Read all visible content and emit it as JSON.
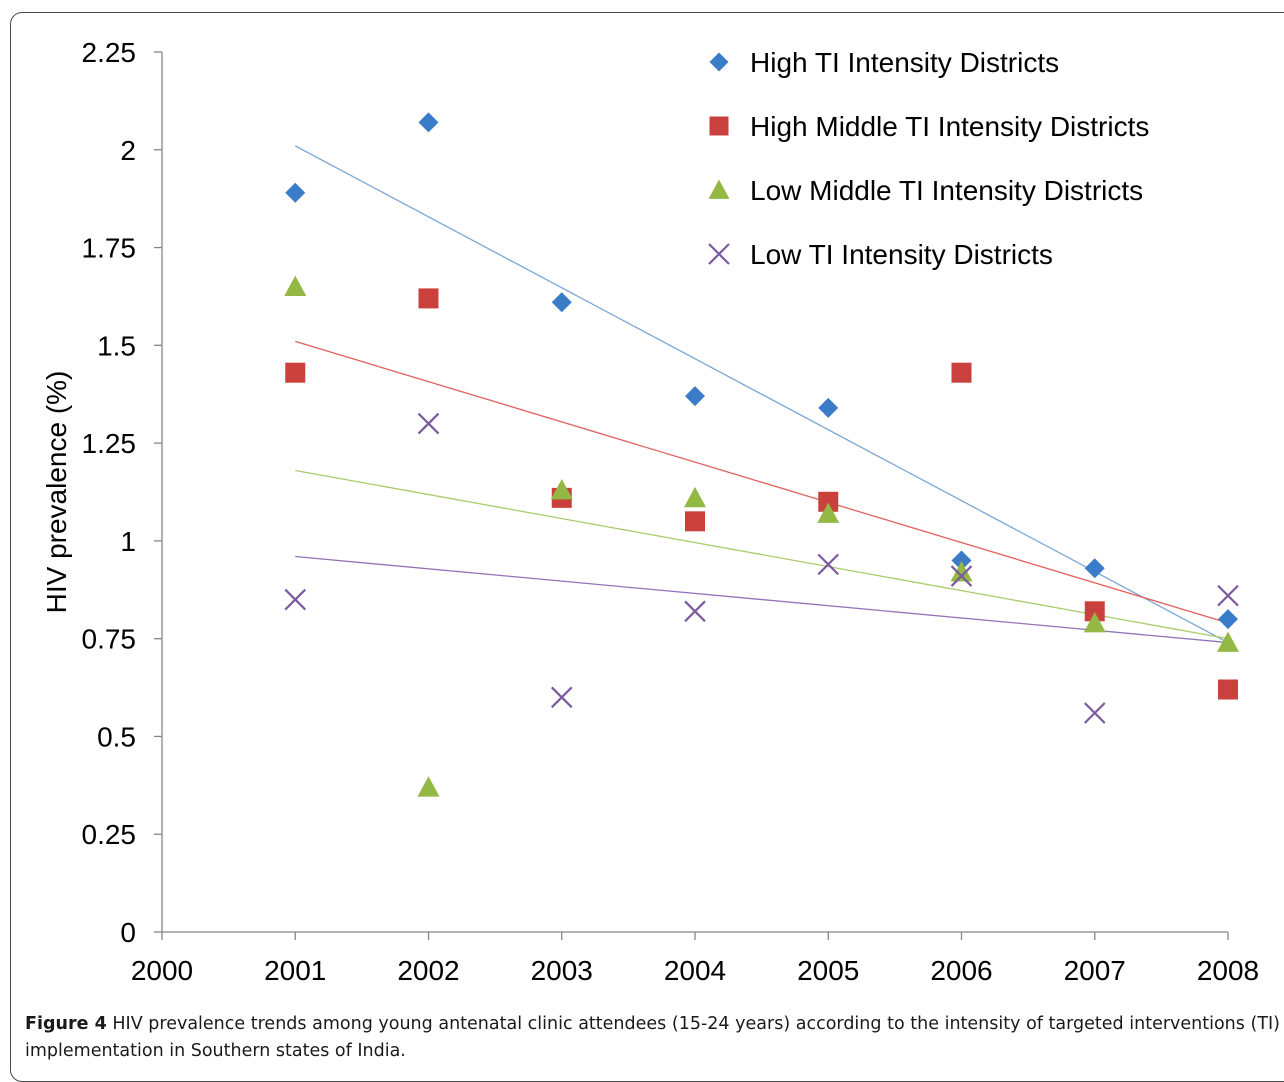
{
  "chart_data": {
    "type": "scatter",
    "ylabel": "HIV prevalence (%)",
    "xlabel": "",
    "xlim": [
      2000,
      2008
    ],
    "ylim": [
      0,
      2.25
    ],
    "x_ticks": [
      "2000",
      "2001",
      "2002",
      "2003",
      "2004",
      "2005",
      "2006",
      "2007",
      "2008"
    ],
    "y_ticks": [
      "0",
      "0.25",
      "0.5",
      "0.75",
      "1",
      "1.25",
      "1.5",
      "1.75",
      "2",
      "2.25"
    ],
    "legend_position": "top-right",
    "grid": false,
    "series": [
      {
        "name": "High TI Intensity Districts",
        "marker": "diamond",
        "color": "#3b7cc9",
        "trend_color": "#7aa6d6",
        "x": [
          2001,
          2002,
          2003,
          2004,
          2005,
          2006,
          2007,
          2008
        ],
        "y": [
          1.89,
          2.07,
          1.61,
          1.37,
          1.34,
          0.95,
          0.93,
          0.8
        ],
        "trendline": [
          [
            2001,
            2.01
          ],
          [
            2008,
            0.74
          ]
        ]
      },
      {
        "name": "High Middle TI Intensity Districts",
        "marker": "square",
        "color": "#c9403c",
        "trend_color": "#e0605c",
        "x": [
          2001,
          2002,
          2003,
          2004,
          2005,
          2006,
          2007,
          2008
        ],
        "y": [
          1.43,
          1.62,
          1.11,
          1.05,
          1.1,
          1.43,
          0.82,
          0.62
        ],
        "trendline": [
          [
            2001,
            1.51
          ],
          [
            2008,
            0.79
          ]
        ]
      },
      {
        "name": "Low Middle TI Intensity Districts",
        "marker": "triangle",
        "color": "#93b843",
        "trend_color": "#a9cc6a",
        "x": [
          2001,
          2002,
          2003,
          2004,
          2005,
          2006,
          2007,
          2008
        ],
        "y": [
          1.65,
          0.37,
          1.13,
          1.11,
          1.07,
          0.92,
          0.79,
          0.74
        ],
        "trendline": [
          [
            2001,
            1.18
          ],
          [
            2008,
            0.75
          ]
        ]
      },
      {
        "name": "Low TI Intensity Districts",
        "marker": "x",
        "color": "#7a5a9e",
        "trend_color": "#9373b8",
        "x": [
          2001,
          2002,
          2003,
          2004,
          2005,
          2006,
          2007,
          2008
        ],
        "y": [
          0.85,
          1.3,
          0.6,
          0.82,
          0.94,
          0.91,
          0.56,
          0.86
        ],
        "trendline": [
          [
            2001,
            0.96
          ],
          [
            2008,
            0.74
          ]
        ]
      }
    ]
  },
  "caption": {
    "label": "Figure 4",
    "text": " HIV prevalence trends among young antenatal clinic attendees (15-24 years) according to the intensity of targeted interventions (TI) implementation in Southern states of India."
  }
}
